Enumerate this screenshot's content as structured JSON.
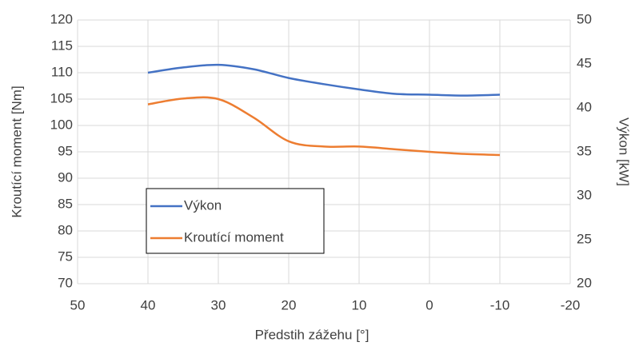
{
  "chart_data": {
    "type": "line",
    "x_label": "Předstih zážehu [°]",
    "y_label": "Kroutící moment [Nm]",
    "y2_label": "Výkon [kW]",
    "x": [
      40,
      35,
      30,
      25,
      20,
      15,
      10,
      5,
      0,
      -5,
      -10
    ],
    "series": [
      {
        "name": "Výkon",
        "color": "#4472c4",
        "axis": "y2",
        "values": [
          44,
          44.6,
          44.9,
          44.4,
          43.4,
          42.7,
          42.1,
          41.6,
          41.5,
          41.4,
          41.5
        ]
      },
      {
        "name": "Kroutící moment",
        "color": "#ed7d31",
        "values": [
          104,
          105.1,
          105,
          101.5,
          97,
          96,
          96,
          95.5,
          95,
          94.6,
          94.4
        ]
      }
    ],
    "xlim": [
      50,
      -20
    ],
    "xticks": [
      50,
      40,
      30,
      20,
      10,
      0,
      -10,
      -20
    ],
    "ylim": [
      70,
      120
    ],
    "yticks": [
      70,
      75,
      80,
      85,
      90,
      95,
      100,
      105,
      110,
      115,
      120
    ],
    "y2lim": [
      20,
      50
    ],
    "y2ticks": [
      20,
      25,
      30,
      35,
      40,
      45,
      50
    ],
    "grid": true,
    "legend": "bottom-left"
  }
}
